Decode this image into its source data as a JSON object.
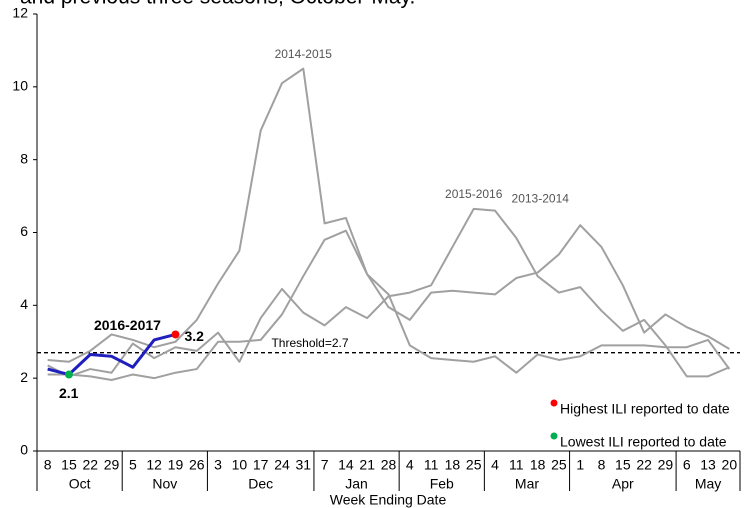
{
  "chart_data": {
    "type": "line",
    "title": "and previous three seasons, October-May.",
    "x_label": "Week Ending Date",
    "categories": [
      "8",
      "15",
      "22",
      "29",
      "5",
      "12",
      "19",
      "26",
      "3",
      "10",
      "17",
      "24",
      "31",
      "7",
      "14",
      "21",
      "28",
      "4",
      "11",
      "18",
      "25",
      "4",
      "11",
      "18",
      "25",
      "1",
      "8",
      "15",
      "22",
      "29",
      "6",
      "13",
      "20"
    ],
    "months": [
      "Oct",
      "Nov",
      "Dec",
      "Jan",
      "Feb",
      "Mar",
      "Apr",
      "May"
    ],
    "ylim": [
      0,
      12
    ],
    "yticks": [
      0,
      2,
      4,
      6,
      8,
      10,
      12
    ],
    "grid": false,
    "series": [
      {
        "name": "2014-2015",
        "color": "#a0a0a0",
        "values": [
          2.5,
          2.45,
          2.75,
          3.2,
          3.05,
          2.85,
          3.0,
          3.6,
          4.6,
          5.5,
          8.8,
          10.1,
          10.5,
          6.25,
          6.4,
          4.85,
          4.3,
          2.9,
          2.55,
          2.5,
          2.45,
          2.6,
          2.15,
          2.65,
          2.5,
          2.6,
          2.9,
          2.9,
          2.9,
          2.85,
          2.85,
          3.05,
          2.25
        ]
      },
      {
        "name": "2013-2014",
        "color": "#a0a0a0",
        "values": [
          2.1,
          2.1,
          2.05,
          1.95,
          2.1,
          2.0,
          2.15,
          2.25,
          3.0,
          3.0,
          3.05,
          3.75,
          4.8,
          5.8,
          6.05,
          4.85,
          3.95,
          3.6,
          4.35,
          4.4,
          4.35,
          4.3,
          4.75,
          4.9,
          5.4,
          6.2,
          5.6,
          4.55,
          3.25,
          3.75,
          3.4,
          3.15,
          2.8
        ]
      },
      {
        "name": "2015-2016",
        "color": "#a0a0a0",
        "values": [
          2.35,
          2.05,
          2.25,
          2.15,
          2.95,
          2.55,
          2.85,
          2.75,
          3.25,
          2.45,
          3.65,
          4.45,
          3.8,
          3.45,
          3.95,
          3.65,
          4.25,
          4.35,
          4.55,
          5.6,
          6.65,
          6.6,
          5.85,
          4.8,
          4.35,
          4.5,
          3.85,
          3.3,
          3.6,
          2.9,
          2.05,
          2.05,
          2.3
        ]
      },
      {
        "name": "2016-2017",
        "color": "#1f1fbf",
        "values": [
          2.25,
          2.1,
          2.65,
          2.6,
          2.3,
          3.05,
          3.2,
          null,
          null,
          null,
          null,
          null,
          null,
          null,
          null,
          null,
          null,
          null,
          null,
          null,
          null,
          null,
          null,
          null,
          null,
          null,
          null,
          null,
          null,
          null,
          null,
          null,
          null
        ],
        "value_labels": [
          null,
          "2.1",
          null,
          null,
          null,
          null,
          "3.2",
          null,
          null,
          null,
          null,
          null,
          null,
          null,
          null,
          null,
          null,
          null,
          null,
          null,
          null,
          null,
          null,
          null,
          null,
          null,
          null,
          null,
          null,
          null,
          null,
          null,
          null
        ]
      }
    ],
    "threshold": {
      "value": 2.7,
      "label": "Threshold=2.7"
    },
    "markers": [
      {
        "label": "Highest ILI reported to date",
        "color": "#ff0000",
        "index": 6
      },
      {
        "label": "Lowest ILI reported to date",
        "color": "#00b050",
        "index": 1
      }
    ]
  }
}
